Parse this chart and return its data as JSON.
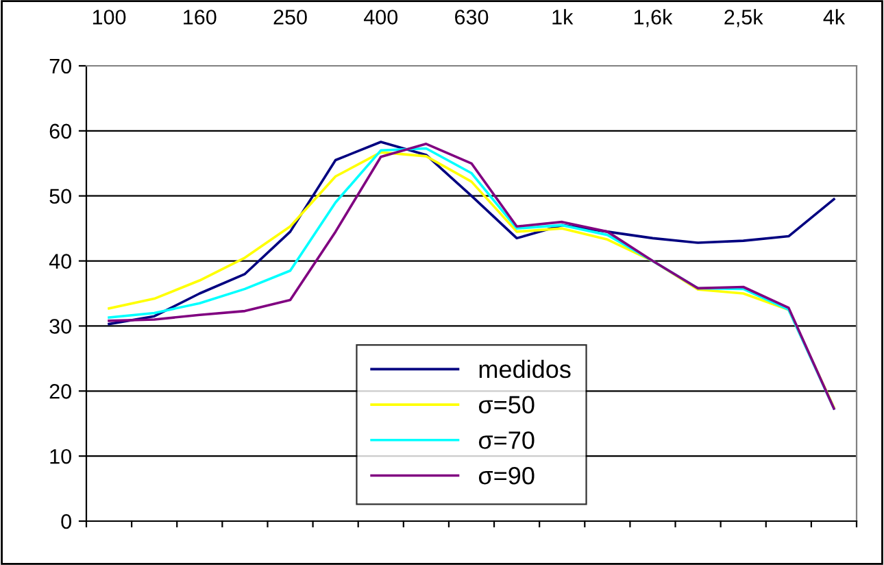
{
  "chart_data": {
    "type": "line",
    "categories": [
      "100",
      null,
      "160",
      null,
      "250",
      null,
      "400",
      null,
      "630",
      null,
      "1k",
      null,
      "1,6k",
      null,
      "2,5k",
      null,
      "4k"
    ],
    "series": [
      {
        "name": "medidos",
        "color": "#000080",
        "values": [
          30.3,
          31.5,
          35,
          38,
          44.5,
          55.5,
          58.3,
          56.3,
          50,
          43.5,
          45.5,
          44.5,
          43.5,
          42.8,
          43.1,
          43.8,
          49.5
        ]
      },
      {
        "name": "σ=50",
        "color": "#ffff00",
        "values": [
          32.7,
          34.2,
          37,
          40.5,
          45.3,
          53,
          56.7,
          56.1,
          52.2,
          44.5,
          45,
          43.3,
          40,
          35.6,
          35,
          32.5,
          17.5
        ]
      },
      {
        "name": "σ=70",
        "color": "#00ffff",
        "values": [
          31.3,
          32,
          33.5,
          35.7,
          38.5,
          49,
          57,
          57.3,
          53.5,
          45,
          45.5,
          44,
          40,
          35.8,
          35.7,
          32.5,
          17.3
        ]
      },
      {
        "name": "σ=90",
        "color": "#800080",
        "values": [
          30.8,
          31,
          31.7,
          32.3,
          34,
          44.5,
          56,
          58,
          55,
          45.3,
          46,
          44.5,
          40,
          35.8,
          36,
          32.8,
          17.3
        ]
      }
    ],
    "ylim": [
      0,
      70
    ],
    "yticks": [
      0,
      10,
      20,
      30,
      40,
      50,
      60,
      70
    ],
    "grid": "y",
    "legend": "bottom",
    "marker": "none",
    "line_style": "solid"
  }
}
